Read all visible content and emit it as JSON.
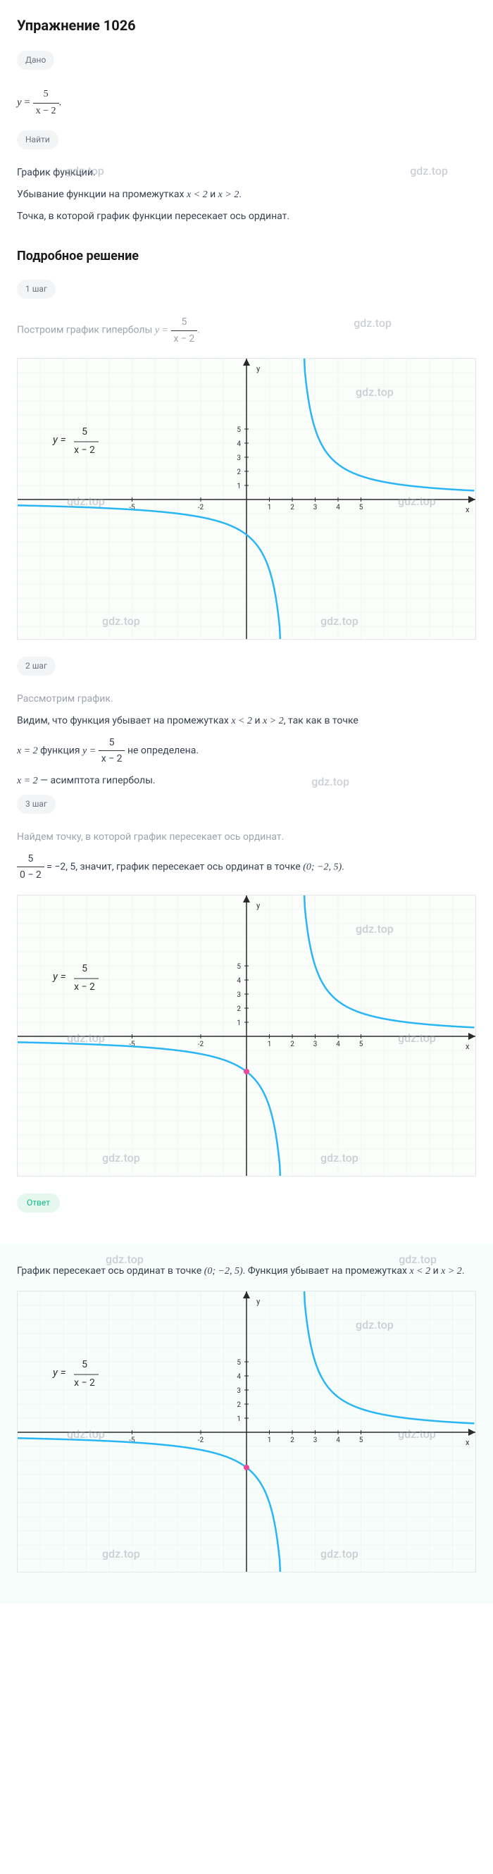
{
  "title": "Упражнение 1026",
  "given_label": "Дано",
  "formula_lhs": "y",
  "formula_num": "5",
  "formula_den": "x − 2",
  "find_label": "Найти",
  "find_text1": "График функции.",
  "find_text2_a": "Убывание функции на промежутках ",
  "find_text2_b": "x < 2",
  "find_text2_c": " и ",
  "find_text2_d": "x > 2",
  "find_text3": "Точка, в которой график функции пересекает ось ординат.",
  "solution_title": "Подробное решение",
  "step1_label": "1 шаг",
  "step1_text_a": "Построим график гиперболы ",
  "step1_text_b": "y = ",
  "step1_frac_num": "5",
  "step1_frac_den": "x − 2",
  "step2_label": "2 шаг",
  "step2_text1": "Рассмотрим график.",
  "step2_text2_a": "Видим, что функция убывает на промежутках ",
  "step2_text2_b": "x < 2",
  "step2_text2_c": " и ",
  "step2_text2_d": "x > 2",
  "step2_text2_e": ", так как в точке",
  "step2_text3_a": "x = 2",
  "step2_text3_b": " функция ",
  "step2_text3_c": "y = ",
  "step2_text3_d": " не определена.",
  "step2_text4_a": "x = 2",
  "step2_text4_b": " — асимптота гиперболы.",
  "step3_label": "3 шаг",
  "step3_text1": "Найдем точку, в которой график пересекает ось ординат.",
  "step3_calc_num": "5",
  "step3_calc_den": "0 − 2",
  "step3_text2_a": " = −2, 5",
  "step3_text2_b": ", значит, график пересекает ось ординат в точке ",
  "step3_text2_c": "(0;  −2, 5)",
  "answer_label": "Ответ",
  "answer_text_a": "График пересекает ось ординат в точке ",
  "answer_text_b": "(0;  −2, 5)",
  "answer_text_c": ". Функция убывает на промежутках ",
  "answer_text_d": "x < 2",
  "answer_text_e": " и ",
  "answer_text_f": "x > 2",
  "watermark": "gdz.top",
  "chart": {
    "type": "hyperbola",
    "xlim": [
      -10,
      10
    ],
    "ylim": [
      -10,
      10
    ],
    "grid_color": "#e0f2e9",
    "grid_minor": "#f0f8f4",
    "axis_color": "#2a2a2a",
    "curve_color": "#29b6f6",
    "point_color": "#ec4899",
    "label_fontsize": 11,
    "tick_fontsize": 10,
    "xticks": [
      -5,
      -2,
      1,
      2,
      3,
      4,
      5
    ],
    "yticks": [
      1,
      2,
      3,
      4,
      5
    ],
    "formula_label": "y = 5/(x−2)",
    "y_axis_label": "y",
    "x_axis_label": "x",
    "intersection_point": [
      0,
      -2.5
    ]
  }
}
